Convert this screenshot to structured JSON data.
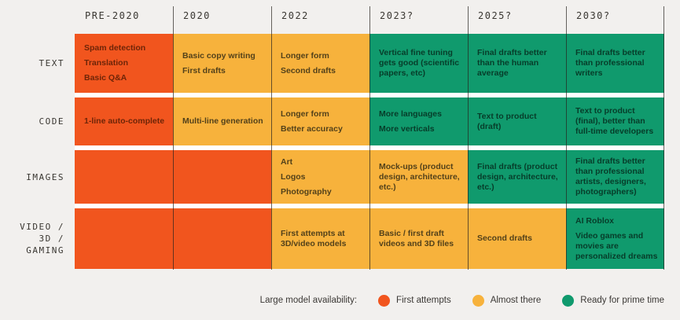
{
  "chart_data": {
    "type": "table",
    "columns": [
      "PRE-2020",
      "2020",
      "2022",
      "2023?",
      "2025?",
      "2030?"
    ],
    "rows": [
      {
        "label_lines": [
          "TEXT"
        ],
        "cells": [
          {
            "status": "first_attempts",
            "lines": [
              "Spam detection",
              "Translation",
              "Basic Q&A"
            ]
          },
          {
            "status": "almost_there",
            "lines": [
              "Basic copy writing",
              "First drafts"
            ]
          },
          {
            "status": "almost_there",
            "lines": [
              "Longer form",
              "Second drafts"
            ]
          },
          {
            "status": "ready_for_prime_time",
            "lines": [
              "Vertical fine tuning gets good (scientific papers, etc)"
            ]
          },
          {
            "status": "ready_for_prime_time",
            "lines": [
              "Final drafts better than the human average"
            ]
          },
          {
            "status": "ready_for_prime_time",
            "lines": [
              "Final drafts better than professional writers"
            ]
          }
        ]
      },
      {
        "label_lines": [
          "CODE"
        ],
        "cells": [
          {
            "status": "first_attempts",
            "lines": [
              "1-line auto-complete"
            ]
          },
          {
            "status": "almost_there",
            "lines": [
              "Multi-line generation"
            ]
          },
          {
            "status": "almost_there",
            "lines": [
              "Longer form",
              "Better accuracy"
            ]
          },
          {
            "status": "ready_for_prime_time",
            "lines": [
              "More languages",
              "More verticals"
            ]
          },
          {
            "status": "ready_for_prime_time",
            "lines": [
              "Text to product (draft)"
            ]
          },
          {
            "status": "ready_for_prime_time",
            "lines": [
              "Text to product (final), better than full-time developers"
            ]
          }
        ]
      },
      {
        "label_lines": [
          "IMAGES"
        ],
        "cells": [
          {
            "status": "first_attempts",
            "lines": []
          },
          {
            "status": "first_attempts",
            "lines": []
          },
          {
            "status": "almost_there",
            "lines": [
              "Art",
              "Logos",
              "Photography"
            ]
          },
          {
            "status": "almost_there",
            "lines": [
              "Mock-ups (product design, architecture, etc.)"
            ]
          },
          {
            "status": "ready_for_prime_time",
            "lines": [
              "Final drafts (product design, architecture, etc.)"
            ]
          },
          {
            "status": "ready_for_prime_time",
            "lines": [
              "Final drafts better than professional artists, designers, photographers)"
            ]
          }
        ]
      },
      {
        "label_lines": [
          "VIDEO /",
          "3D /",
          "GAMING"
        ],
        "cells": [
          {
            "status": "first_attempts",
            "lines": []
          },
          {
            "status": "first_attempts",
            "lines": []
          },
          {
            "status": "almost_there",
            "lines": [
              "First attempts at 3D/video models"
            ]
          },
          {
            "status": "almost_there",
            "lines": [
              "Basic / first draft videos and 3D files"
            ]
          },
          {
            "status": "almost_there",
            "lines": [
              "Second drafts"
            ]
          },
          {
            "status": "ready_for_prime_time",
            "lines": [
              "AI Roblox",
              "Video games and movies are personalized dreams"
            ]
          }
        ]
      }
    ],
    "legend": {
      "label": "Large model availability:",
      "items": [
        {
          "label": "First attempts",
          "status": "first_attempts",
          "color": "#F1551E"
        },
        {
          "label": "Almost there",
          "status": "almost_there",
          "color": "#F7B23C"
        },
        {
          "label": "Ready for prime time",
          "status": "ready_for_prime_time",
          "color": "#109A6D"
        }
      ]
    },
    "status_colors": {
      "first_attempts": "#F1551E",
      "almost_there": "#F7B23C",
      "ready_for_prime_time": "#109A6D"
    },
    "layout_hints": {
      "background": "#F2F0EE",
      "gridlines": "vertical-column-separators",
      "legend_position": "bottom-right"
    }
  }
}
